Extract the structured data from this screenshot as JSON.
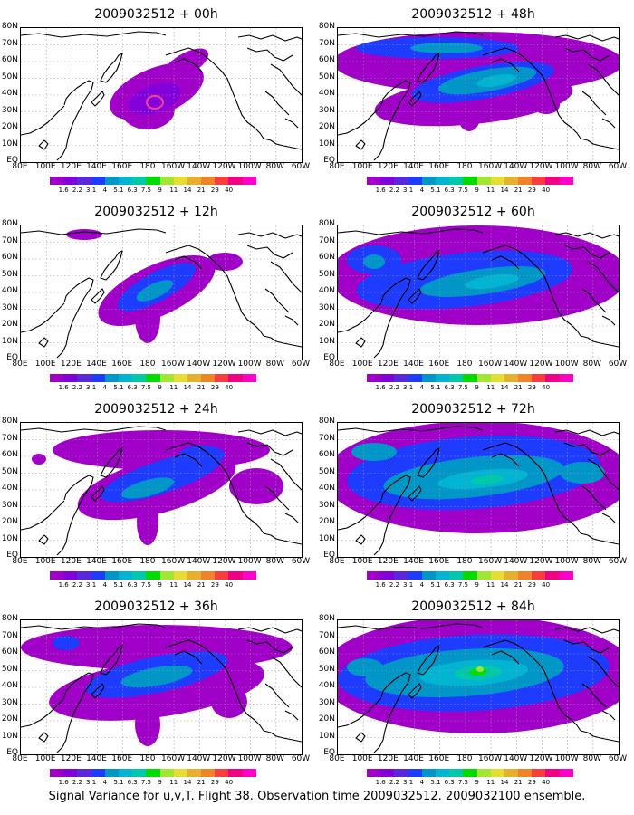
{
  "panels": [
    {
      "title": "2009032512 + 00h",
      "stage": 0
    },
    {
      "title": "2009032512 + 48h",
      "stage": 4
    },
    {
      "title": "2009032512 + 12h",
      "stage": 1
    },
    {
      "title": "2009032512 + 60h",
      "stage": 5
    },
    {
      "title": "2009032512 + 24h",
      "stage": 2
    },
    {
      "title": "2009032512 + 72h",
      "stage": 6
    },
    {
      "title": "2009032512 + 36h",
      "stage": 3
    },
    {
      "title": "2009032512 + 84h",
      "stage": 7
    }
  ],
  "axes": {
    "lat_labels": [
      "EQ",
      "10N",
      "20N",
      "30N",
      "40N",
      "50N",
      "60N",
      "70N",
      "80N"
    ],
    "lon_labels": [
      "80E",
      "100E",
      "120E",
      "140E",
      "160E",
      "180",
      "160W",
      "140W",
      "120W",
      "100W",
      "80W",
      "60W"
    ]
  },
  "colorbar": {
    "labels": [
      "1.6",
      "2.2",
      "3.1",
      "4",
      "5.1",
      "6.3",
      "7.5",
      "9",
      "11",
      "14",
      "21",
      "29",
      "40"
    ],
    "colors": [
      "#a000c8",
      "#8200dc",
      "#5a28dc",
      "#1e3cff",
      "#0096c8",
      "#00b4d2",
      "#00c8aa",
      "#00dc00",
      "#a0e632",
      "#e6dc32",
      "#e6af2d",
      "#f08228",
      "#fa3c3c",
      "#f00082",
      "#ff00c8"
    ]
  },
  "footer": "Signal Variance for u,v,T. Flight 38. Observation time 2009032512. 2009032100 ensemble."
}
